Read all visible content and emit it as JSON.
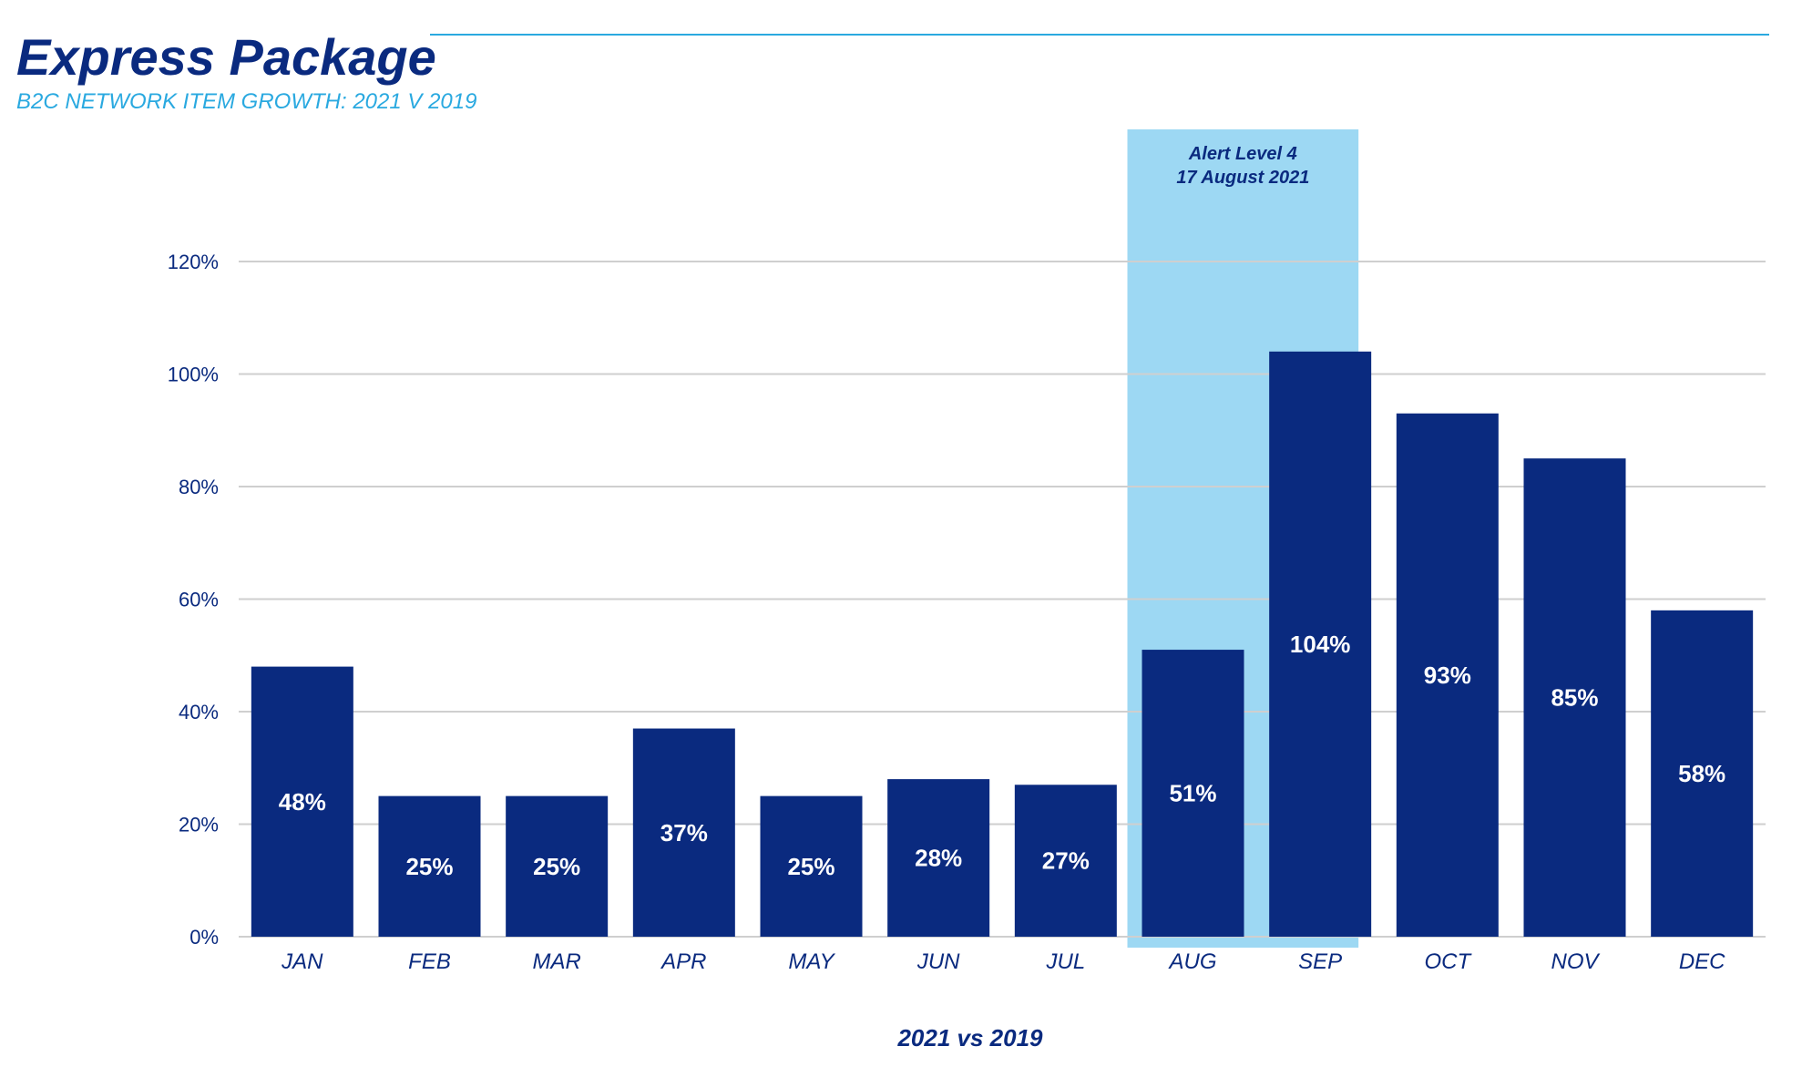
{
  "header": {
    "title": "Express Package",
    "subtitle": "B2C NETWORK ITEM GROWTH: 2021 V 2019"
  },
  "colors": {
    "bar": "#0a2a7f",
    "highlight": "#9dd8f3",
    "accent": "#2aa9e0",
    "grid": "#cfcfcf",
    "axis_text": "#0a2a7f"
  },
  "chart_data": {
    "type": "bar",
    "categories": [
      "JAN",
      "FEB",
      "MAR",
      "APR",
      "MAY",
      "JUN",
      "JUL",
      "AUG",
      "SEP",
      "OCT",
      "NOV",
      "DEC"
    ],
    "values": [
      48,
      25,
      25,
      37,
      25,
      28,
      27,
      51,
      104,
      93,
      85,
      58
    ],
    "value_labels": [
      "48%",
      "25%",
      "25%",
      "37%",
      "25%",
      "28%",
      "27%",
      "51%",
      "104%",
      "93%",
      "85%",
      "58%"
    ],
    "xlabel": "2021 vs 2019",
    "ylabel": "",
    "ylim": [
      0,
      120
    ],
    "yticks": [
      0,
      20,
      40,
      60,
      80,
      100,
      120
    ],
    "ytick_labels": [
      "0%",
      "20%",
      "40%",
      "60%",
      "80%",
      "100%",
      "120%"
    ],
    "grid": true,
    "legend": "none",
    "highlight": {
      "categories": [
        "AUG",
        "SEP"
      ],
      "label_lines": [
        "Alert Level 4",
        "17 August 2021"
      ]
    }
  }
}
